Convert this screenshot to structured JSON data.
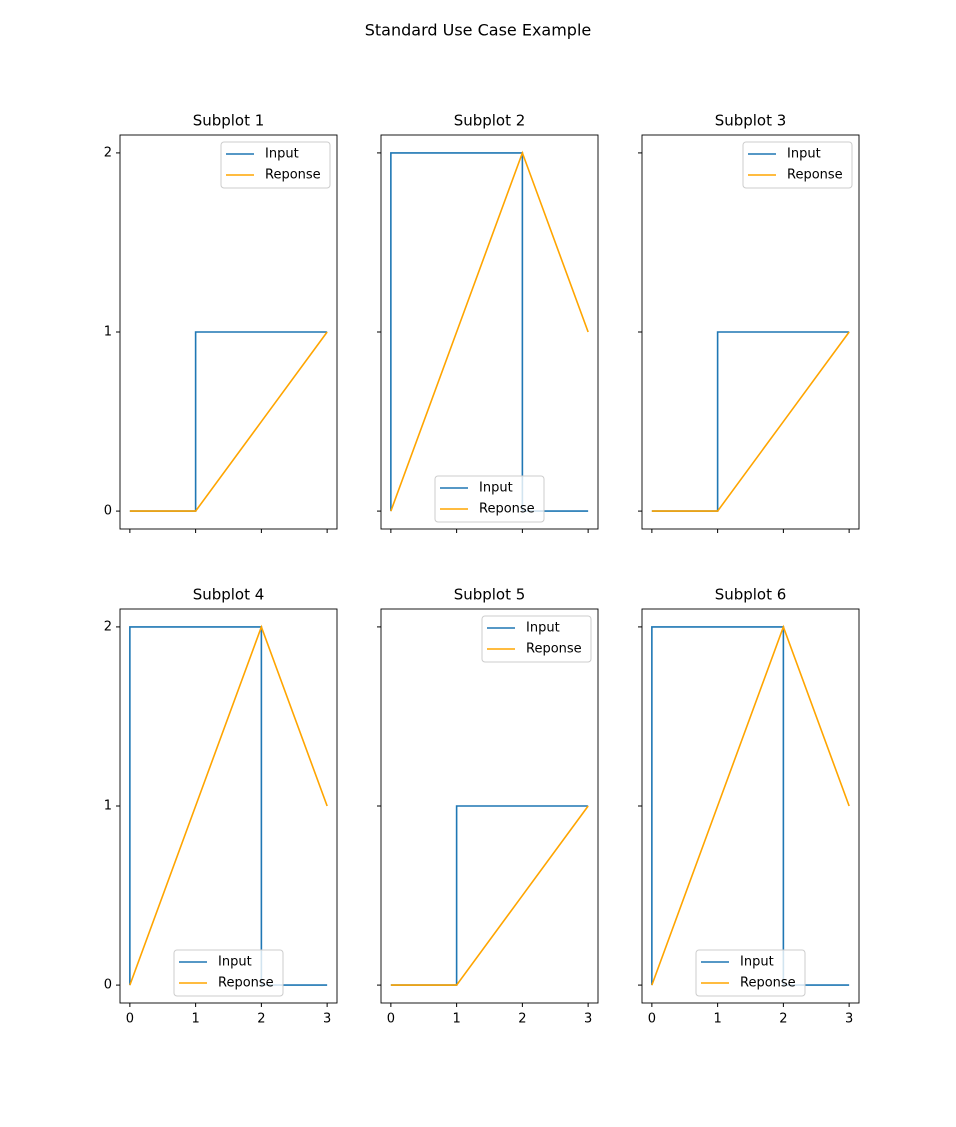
{
  "title": "Standard Use Case Example",
  "chart_data": [
    {
      "type": "line",
      "title": "Subplot 1",
      "xlim": [
        -0.15,
        3.15
      ],
      "ylim": [
        -0.1,
        2.1
      ],
      "xticks": [
        0,
        1,
        2,
        3
      ],
      "yticks": [
        0,
        1,
        2
      ],
      "show_xtick_labels": false,
      "show_ytick_labels": true,
      "legend": "upper right",
      "series": [
        {
          "name": "Input",
          "color": "#1f77b4",
          "x": [
            0,
            1,
            1,
            3
          ],
          "values": [
            0,
            0,
            1,
            1
          ]
        },
        {
          "name": "Reponse",
          "color": "#ffa500",
          "x": [
            0,
            1,
            2,
            3
          ],
          "values": [
            0,
            0,
            0.5,
            1
          ]
        }
      ]
    },
    {
      "type": "line",
      "title": "Subplot 2",
      "xlim": [
        -0.15,
        3.15
      ],
      "ylim": [
        -0.1,
        2.1
      ],
      "xticks": [
        0,
        1,
        2,
        3
      ],
      "yticks": [
        0,
        1,
        2
      ],
      "show_xtick_labels": false,
      "show_ytick_labels": false,
      "legend": "lower center",
      "series": [
        {
          "name": "Input",
          "color": "#1f77b4",
          "x": [
            0,
            0,
            2,
            2,
            3
          ],
          "values": [
            0,
            2,
            2,
            0,
            0
          ]
        },
        {
          "name": "Reponse",
          "color": "#ffa500",
          "x": [
            0,
            1,
            2,
            3
          ],
          "values": [
            0,
            1,
            2,
            1
          ]
        }
      ]
    },
    {
      "type": "line",
      "title": "Subplot 3",
      "xlim": [
        -0.15,
        3.15
      ],
      "ylim": [
        -0.1,
        2.1
      ],
      "xticks": [
        0,
        1,
        2,
        3
      ],
      "yticks": [
        0,
        1,
        2
      ],
      "show_xtick_labels": false,
      "show_ytick_labels": false,
      "legend": "upper right",
      "series": [
        {
          "name": "Input",
          "color": "#1f77b4",
          "x": [
            0,
            1,
            1,
            3
          ],
          "values": [
            0,
            0,
            1,
            1
          ]
        },
        {
          "name": "Reponse",
          "color": "#ffa500",
          "x": [
            0,
            1,
            2,
            3
          ],
          "values": [
            0,
            0,
            0.5,
            1
          ]
        }
      ]
    },
    {
      "type": "line",
      "title": "Subplot 4",
      "xlim": [
        -0.15,
        3.15
      ],
      "ylim": [
        -0.1,
        2.1
      ],
      "xticks": [
        0,
        1,
        2,
        3
      ],
      "yticks": [
        0,
        1,
        2
      ],
      "show_xtick_labels": true,
      "show_ytick_labels": true,
      "legend": "lower center",
      "series": [
        {
          "name": "Input",
          "color": "#1f77b4",
          "x": [
            0,
            0,
            2,
            2,
            3
          ],
          "values": [
            0,
            2,
            2,
            0,
            0
          ]
        },
        {
          "name": "Reponse",
          "color": "#ffa500",
          "x": [
            0,
            1,
            2,
            3
          ],
          "values": [
            0,
            1,
            2,
            1
          ]
        }
      ]
    },
    {
      "type": "line",
      "title": "Subplot 5",
      "xlim": [
        -0.15,
        3.15
      ],
      "ylim": [
        -0.1,
        2.1
      ],
      "xticks": [
        0,
        1,
        2,
        3
      ],
      "yticks": [
        0,
        1,
        2
      ],
      "show_xtick_labels": true,
      "show_ytick_labels": false,
      "legend": "upper right",
      "series": [
        {
          "name": "Input",
          "color": "#1f77b4",
          "x": [
            0,
            1,
            1,
            3
          ],
          "values": [
            0,
            0,
            1,
            1
          ]
        },
        {
          "name": "Reponse",
          "color": "#ffa500",
          "x": [
            0,
            1,
            2,
            3
          ],
          "values": [
            0,
            0,
            0.5,
            1
          ]
        }
      ]
    },
    {
      "type": "line",
      "title": "Subplot 6",
      "xlim": [
        -0.15,
        3.15
      ],
      "ylim": [
        -0.1,
        2.1
      ],
      "xticks": [
        0,
        1,
        2,
        3
      ],
      "yticks": [
        0,
        1,
        2
      ],
      "show_xtick_labels": true,
      "show_ytick_labels": false,
      "legend": "lower center",
      "series": [
        {
          "name": "Input",
          "color": "#1f77b4",
          "x": [
            0,
            0,
            2,
            2,
            3
          ],
          "values": [
            0,
            2,
            2,
            0,
            0
          ]
        },
        {
          "name": "Reponse",
          "color": "#ffa500",
          "x": [
            0,
            1,
            2,
            3
          ],
          "values": [
            0,
            1,
            2,
            1
          ]
        }
      ]
    }
  ]
}
